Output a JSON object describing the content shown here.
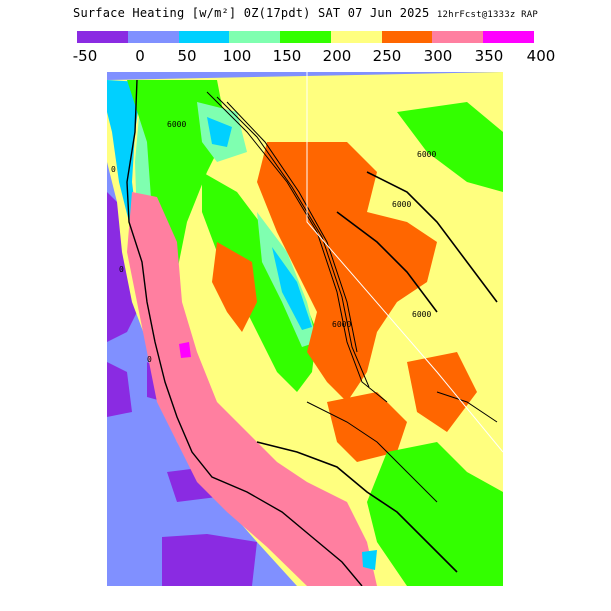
{
  "header": {
    "title_main": "Surface Heating [w/m²] 0Z(17pdt) SAT 07 Jun 2025",
    "title_run": "12hrFcst@1333z RAP"
  },
  "legend": {
    "colors": [
      "#8a2be2",
      "#8090ff",
      "#00d0ff",
      "#7fffb0",
      "#33ff00",
      "#ffff7f",
      "#ff6600",
      "#ff7fa0",
      "#ff00ff"
    ],
    "ticks": [
      "-50",
      "0",
      "50",
      "100",
      "150",
      "200",
      "250",
      "300",
      "350",
      "400"
    ]
  },
  "map": {
    "contour_labels": [
      "6000",
      "6000",
      "6000",
      "6000",
      "6000",
      "0",
      "0",
      "0"
    ]
  }
}
